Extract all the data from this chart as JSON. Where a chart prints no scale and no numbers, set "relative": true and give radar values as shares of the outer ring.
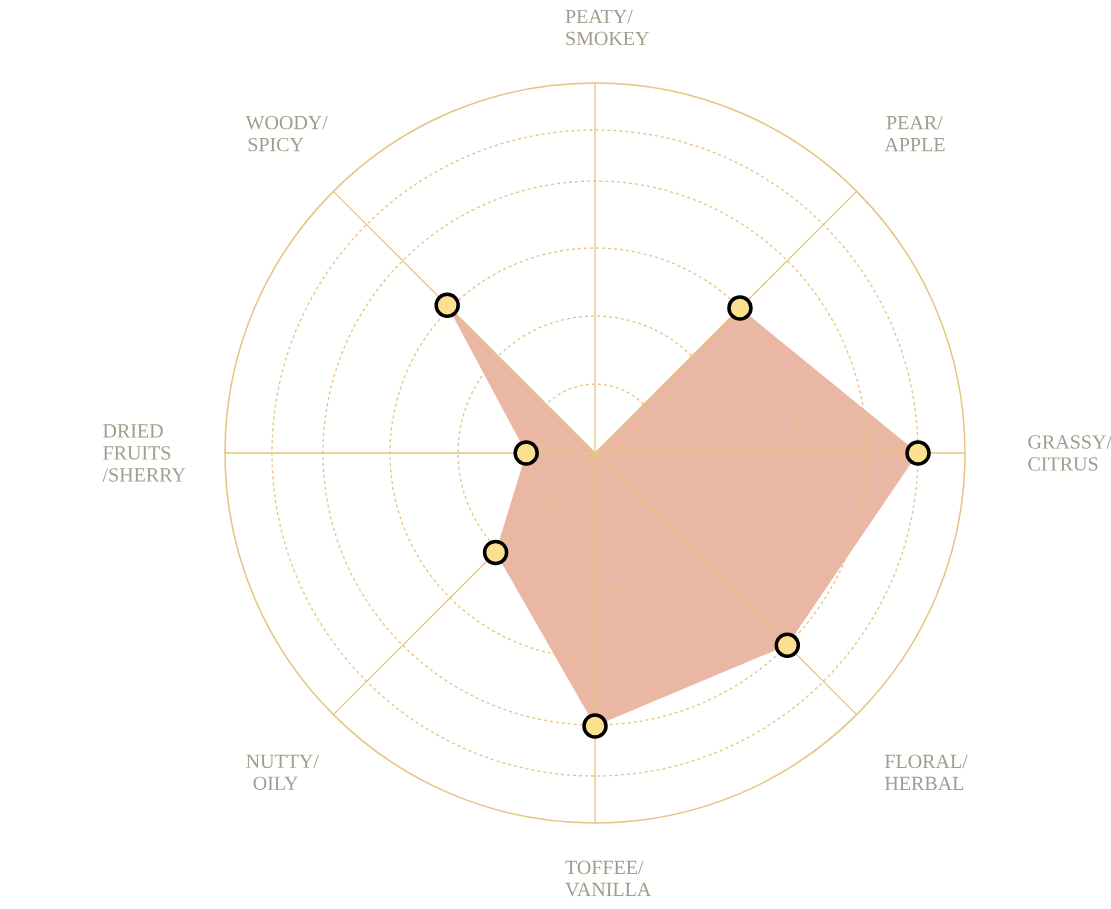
{
  "chart_data": {
    "type": "radar",
    "relative": true,
    "grid": true,
    "marker": "circle",
    "categories": [
      "PEATY/ SMOKEY",
      "PEAR/ APPLE",
      "GRASSY/ CITRUS",
      "FLORAL/ HERBAL",
      "TOFFEE/ VANILLA",
      "NUTTY/ OILY",
      "DRIED FRUITS /SHERRY",
      "WOODY/ SPICY"
    ],
    "series": [
      {
        "color": "#e9b7a4",
        "values": [
          0,
          0.554,
          0.873,
          0.735,
          0.738,
          0.38,
          0.186,
          0.565
        ]
      }
    ]
  }
}
